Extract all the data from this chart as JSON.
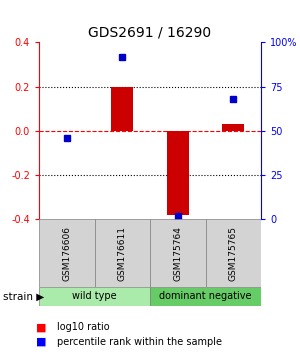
{
  "title": "GDS2691 / 16290",
  "samples": [
    "GSM176606",
    "GSM176611",
    "GSM175764",
    "GSM175765"
  ],
  "log10_ratio": [
    0.0,
    0.2,
    -0.38,
    0.03
  ],
  "percentile_rank": [
    46,
    92,
    2,
    68
  ],
  "groups": [
    {
      "label": "wild type",
      "color": "#aaeaaa",
      "span": [
        0,
        2
      ]
    },
    {
      "label": "dominant negative",
      "color": "#66cc66",
      "span": [
        2,
        4
      ]
    }
  ],
  "bar_color": "#cc0000",
  "dot_color": "#0000cc",
  "ylim_left": [
    -0.4,
    0.4
  ],
  "ylim_right": [
    0,
    100
  ],
  "yticks_left": [
    -0.4,
    -0.2,
    0.0,
    0.2,
    0.4
  ],
  "yticks_right": [
    0,
    25,
    50,
    75,
    100
  ],
  "ytick_labels_right": [
    "0",
    "25",
    "50",
    "75",
    "100%"
  ],
  "hlines_dotted": [
    -0.2,
    0.2
  ],
  "hline_dashed": 0.0,
  "title_fontsize": 10,
  "tick_fontsize": 7,
  "sample_fontsize": 6.5,
  "group_fontsize": 7,
  "legend_fontsize": 7,
  "bar_width": 0.4,
  "dot_size": 4,
  "background_color": "#ffffff",
  "label_bg_color": "#d3d3d3"
}
